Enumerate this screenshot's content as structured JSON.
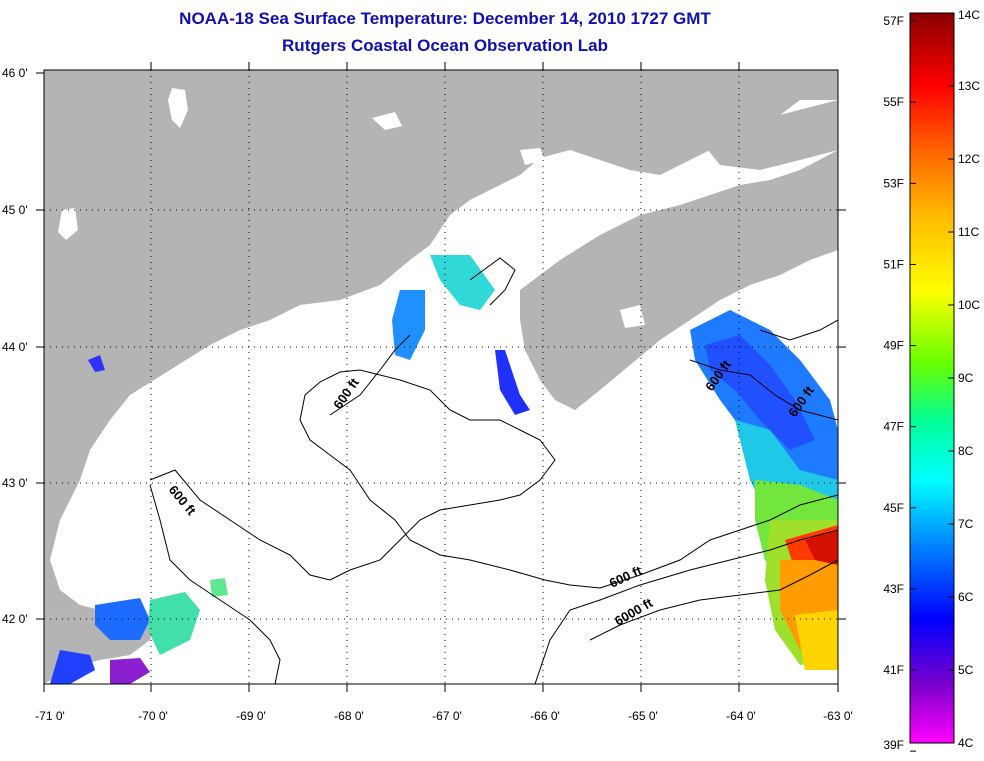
{
  "title": {
    "line1": "NOAA-18 Sea Surface Temperature:  December 14, 2010 1727 GMT",
    "line2": "Rutgers Coastal Ocean Observation Lab"
  },
  "map": {
    "lon_range": [
      -71,
      -63
    ],
    "lat_range": [
      41.5,
      46
    ],
    "lon_ticks": [
      "-71 0'",
      "-70 0'",
      "-69 0'",
      "-68 0'",
      "-67 0'",
      "-66 0'",
      "-65 0'",
      "-64 0'",
      "-63 0'"
    ],
    "lat_ticks": [
      "46 0'",
      "45 0'",
      "44 0'",
      "43 0'",
      "42 0'"
    ],
    "contour_labels": [
      "600 ft",
      "600 ft",
      "600 ft",
      "600 ft",
      "600 ft",
      "6000 ft"
    ],
    "grid": "dotted",
    "land_color": "#b4b4b4",
    "nodata_color": "#ffffff"
  },
  "colorbar": {
    "fahrenheit_labels": [
      "57F",
      "55F",
      "53F",
      "51F",
      "49F",
      "47F",
      "45F",
      "43F",
      "41F",
      "39F"
    ],
    "celsius_labels": [
      "14C",
      "13C",
      "12C",
      "11C",
      "10C",
      "9C",
      "8C",
      "7C",
      "6C",
      "5C",
      "4C"
    ],
    "range_celsius": [
      4,
      14
    ],
    "colors": [
      "#ff00ff",
      "#6600cc",
      "#0000ff",
      "#0088ff",
      "#00ffff",
      "#00ff88",
      "#88ff00",
      "#ffff00",
      "#ffaa00",
      "#ff4400",
      "#ff0000",
      "#880000"
    ]
  }
}
